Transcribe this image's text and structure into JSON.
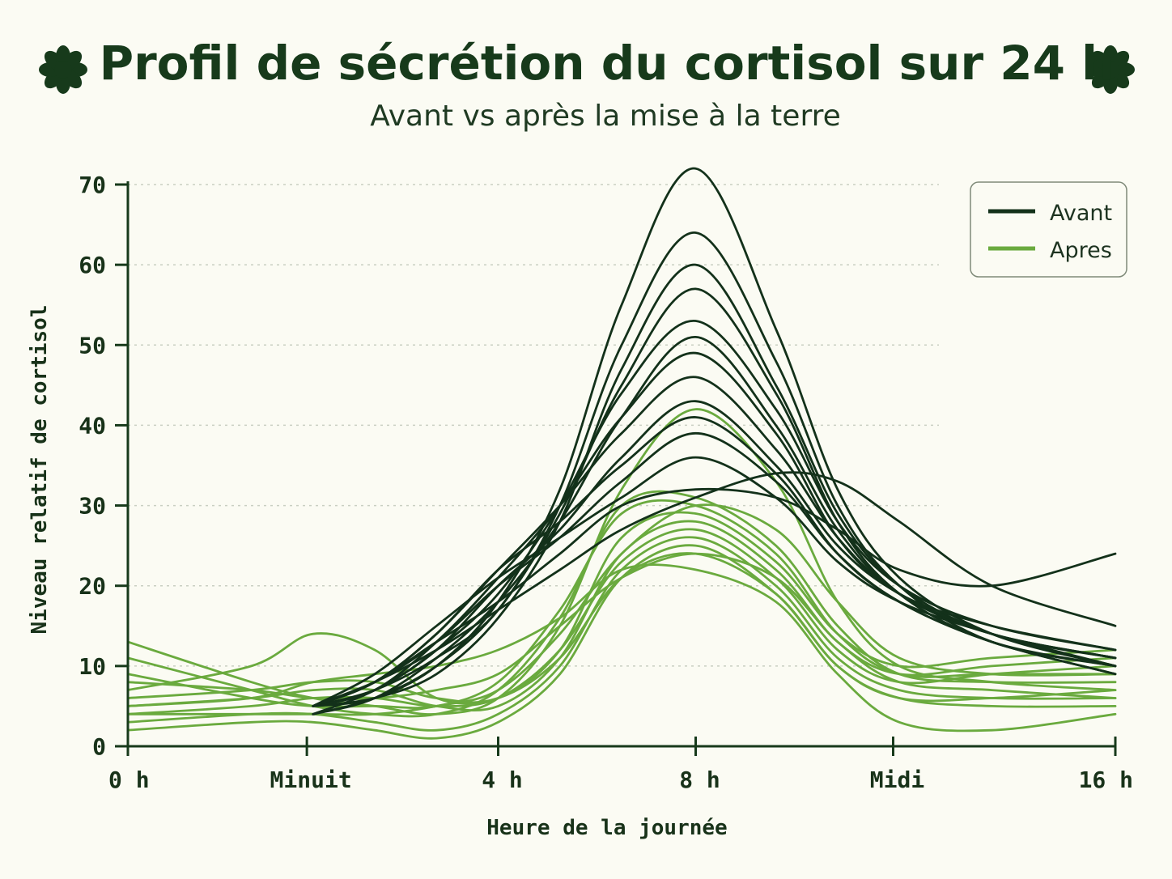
{
  "chart_data": {
    "type": "line",
    "title": "Profil de sécrétion du cortisol sur 24 h",
    "subtitle": "Avant vs après la mise à la terre",
    "xlabel": "Heure de la journée",
    "ylabel": "Niveau relatif de cortisol",
    "xlim": [
      0,
      16
    ],
    "ylim": [
      0,
      70
    ],
    "x_ticks": [
      {
        "value": 0,
        "label": "0 h"
      },
      {
        "value": 2.9,
        "label": "Minuit"
      },
      {
        "value": 6,
        "label": "4 h"
      },
      {
        "value": 9.2,
        "label": "8 h"
      },
      {
        "value": 12.4,
        "label": "Midi"
      },
      {
        "value": 16,
        "label": "16 h"
      }
    ],
    "y_ticks": [
      0,
      10,
      20,
      30,
      40,
      50,
      60,
      70
    ],
    "grid": "horizontal-dotted",
    "legend_position": "top-right",
    "x": [
      0,
      2,
      3,
      4,
      5,
      6,
      7,
      8,
      9.2,
      10.5,
      11.5,
      12.5,
      14,
      16
    ],
    "series": [
      {
        "name": "Avant",
        "color": "#13311a",
        "start": 2.6,
        "values": [
          null,
          null,
          5,
          6,
          10,
          18,
          32,
          55,
          72,
          52,
          32,
          21,
          14,
          10
        ]
      },
      {
        "name": "Avant",
        "color": "#13311a",
        "start": 2.6,
        "values": [
          null,
          null,
          5,
          7,
          11,
          17,
          30,
          50,
          64,
          48,
          30,
          20,
          13,
          10
        ]
      },
      {
        "name": "Avant",
        "color": "#13311a",
        "start": 2.6,
        "values": [
          null,
          null,
          5,
          6,
          9,
          16,
          28,
          47,
          60,
          45,
          29,
          20,
          14,
          11
        ]
      },
      {
        "name": "Avant",
        "color": "#13311a",
        "start": 2.6,
        "values": [
          null,
          null,
          4,
          6,
          10,
          17,
          29,
          45,
          57,
          44,
          28,
          19,
          13,
          10
        ]
      },
      {
        "name": "Avant",
        "color": "#13311a",
        "start": 2.6,
        "values": [
          null,
          null,
          5,
          7,
          12,
          19,
          30,
          44,
          53,
          42,
          28,
          20,
          15,
          12
        ]
      },
      {
        "name": "Avant",
        "color": "#13311a",
        "start": 2.6,
        "values": [
          null,
          null,
          4,
          6,
          11,
          18,
          28,
          41,
          51,
          40,
          27,
          19,
          14,
          11
        ]
      },
      {
        "name": "Avant",
        "color": "#13311a",
        "start": 2.6,
        "values": [
          null,
          null,
          5,
          7,
          13,
          21,
          30,
          41,
          49,
          39,
          26,
          19,
          15,
          12
        ]
      },
      {
        "name": "Avant",
        "color": "#13311a",
        "start": 2.6,
        "values": [
          null,
          null,
          5,
          8,
          14,
          22,
          30,
          39,
          46,
          37,
          26,
          19,
          14,
          11
        ]
      },
      {
        "name": "Avant",
        "color": "#13311a",
        "start": 2.6,
        "values": [
          null,
          null,
          4,
          7,
          12,
          20,
          27,
          36,
          43,
          35,
          25,
          19,
          14,
          10
        ]
      },
      {
        "name": "Avant",
        "color": "#13311a",
        "start": 2.6,
        "values": [
          null,
          null,
          5,
          8,
          14,
          22,
          28,
          35,
          41,
          34,
          24,
          18,
          13,
          9
        ]
      },
      {
        "name": "Avant",
        "color": "#13311a",
        "start": 2.6,
        "values": [
          null,
          null,
          5,
          8,
          13,
          20,
          26,
          33,
          39,
          33,
          24,
          18,
          13,
          9
        ]
      },
      {
        "name": "Avant",
        "color": "#13311a",
        "start": 2.6,
        "values": [
          null,
          null,
          5,
          9,
          15,
          21,
          26,
          31,
          36,
          31,
          23,
          18,
          14,
          10
        ]
      },
      {
        "name": "Avant",
        "color": "#13311a",
        "start": 2.6,
        "values": [
          null,
          null,
          5,
          8,
          13,
          18,
          24,
          30,
          32,
          31,
          27,
          22,
          20,
          24
        ]
      },
      {
        "name": "Avant",
        "color": "#13311a",
        "start": 2.6,
        "values": [
          null,
          null,
          5,
          8,
          12,
          17,
          22,
          27,
          31,
          34,
          33,
          28,
          20,
          15
        ]
      },
      {
        "name": "Apres",
        "color": "#6aaa3e",
        "start": 0,
        "values": [
          13,
          8,
          6,
          5,
          4,
          6,
          15,
          32,
          42,
          33,
          18,
          10,
          8,
          7
        ]
      },
      {
        "name": "Apres",
        "color": "#6aaa3e",
        "start": 0,
        "values": [
          11,
          7,
          5,
          4,
          4,
          7,
          16,
          30,
          31,
          25,
          15,
          9,
          8,
          8
        ]
      },
      {
        "name": "Apres",
        "color": "#6aaa3e",
        "start": 0,
        "values": [
          9,
          6,
          5,
          5,
          5,
          8,
          17,
          29,
          30,
          24,
          14,
          9,
          9,
          9
        ]
      },
      {
        "name": "Apres",
        "color": "#6aaa3e",
        "start": 0,
        "values": [
          6,
          7,
          8,
          8,
          6,
          6,
          12,
          26,
          29,
          23,
          14,
          10,
          11,
          12
        ]
      },
      {
        "name": "Apres",
        "color": "#6aaa3e",
        "start": 0,
        "values": [
          5,
          6,
          7,
          7,
          5,
          5,
          11,
          24,
          28,
          22,
          13,
          9,
          10,
          11
        ]
      },
      {
        "name": "Apres",
        "color": "#6aaa3e",
        "start": 0,
        "values": [
          4,
          5,
          6,
          6,
          5,
          6,
          12,
          23,
          27,
          21,
          12,
          8,
          9,
          10
        ]
      },
      {
        "name": "Apres",
        "color": "#6aaa3e",
        "start": 0,
        "values": [
          3,
          4,
          4,
          3,
          2,
          4,
          10,
          22,
          26,
          20,
          11,
          7,
          6,
          6
        ]
      },
      {
        "name": "Apres",
        "color": "#6aaa3e",
        "start": 0,
        "values": [
          2,
          3,
          3,
          2,
          1,
          3,
          9,
          21,
          25,
          19,
          10,
          6,
          5,
          5
        ]
      },
      {
        "name": "Apres",
        "color": "#6aaa3e",
        "start": 0,
        "values": [
          7,
          10,
          14,
          12,
          6,
          6,
          11,
          21,
          24,
          19,
          10,
          6,
          6,
          7
        ]
      },
      {
        "name": "Apres",
        "color": "#6aaa3e",
        "start": 0,
        "values": [
          5,
          6,
          8,
          9,
          10,
          12,
          16,
          22,
          22,
          18,
          9,
          3,
          2,
          4
        ]
      },
      {
        "name": "Apres",
        "color": "#6aaa3e",
        "start": 0,
        "values": [
          8,
          7,
          6,
          6,
          7,
          9,
          15,
          21,
          24,
          21,
          13,
          8,
          7,
          6
        ]
      },
      {
        "name": "Apres",
        "color": "#6aaa3e",
        "start": 0,
        "values": [
          4,
          4,
          4,
          4,
          5,
          7,
          14,
          24,
          30,
          27,
          18,
          11,
          9,
          9
        ]
      }
    ],
    "legend": [
      {
        "label": "Avant",
        "color": "#13311a"
      },
      {
        "label": "Apres",
        "color": "#6aaa3e"
      }
    ],
    "decorations": {
      "left": "flower-icon",
      "right": "flower-icon",
      "color": "#173a1b"
    }
  }
}
